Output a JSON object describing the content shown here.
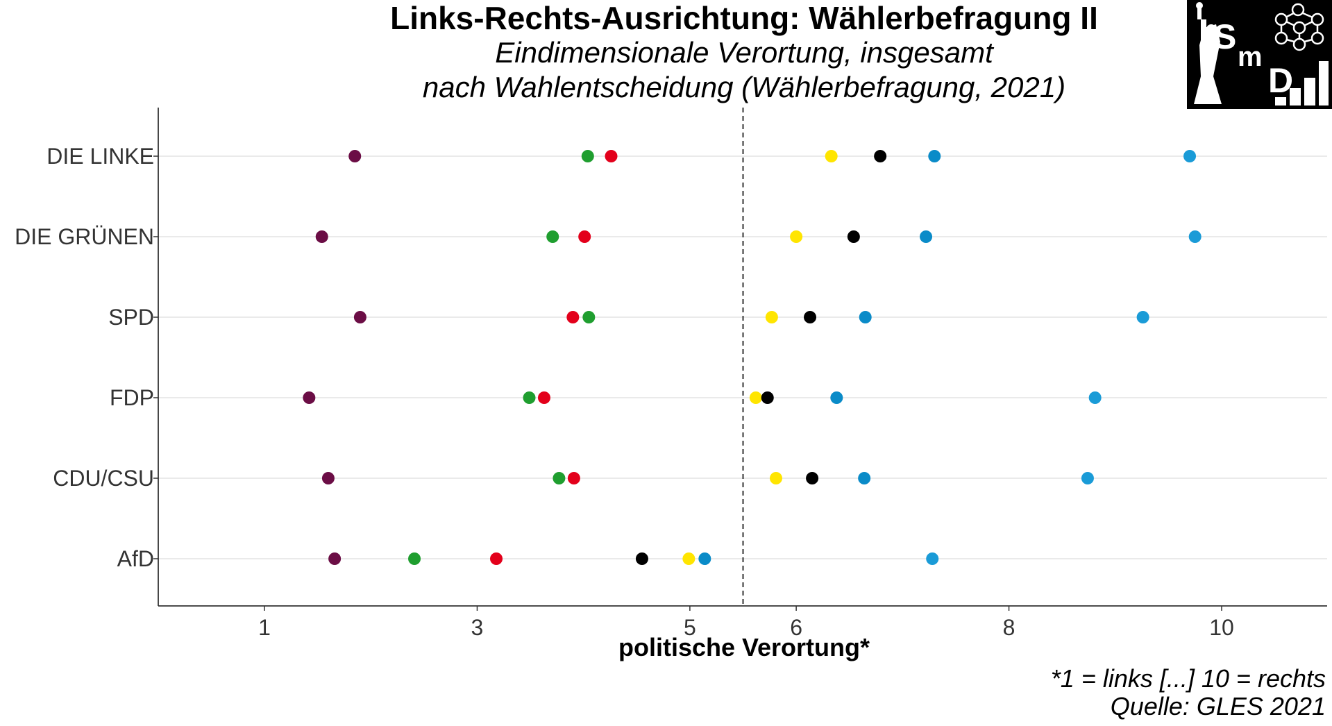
{
  "chart_data": {
    "type": "scatter",
    "title": "Links-Rechts-Ausrichtung: Wählerbefragung II",
    "subtitle_line1": "Eindimensionale Verortung, insgesamt",
    "subtitle_line2": "nach Wahlentscheidung (Wählerbefragung, 2021)",
    "xlabel": "politische Verortung*",
    "caption_line1": "*1 = links [...] 10 = rechts",
    "caption_line2": "Quelle: GLES 2021",
    "xlim": [
      0,
      11
    ],
    "x_ticks": [
      {
        "value": 1,
        "label": "1"
      },
      {
        "value": 3,
        "label": "3"
      },
      {
        "value": 5,
        "label": "5"
      },
      {
        "value": 6,
        "label": "6"
      },
      {
        "value": 8,
        "label": "8"
      },
      {
        "value": 10,
        "label": "10"
      }
    ],
    "reference_line": 5.5,
    "reference_line_style": "dashed",
    "grid": "horizontal major",
    "legend": "none",
    "categories": [
      "DIE LINKE",
      "DIE GRÜNEN",
      "SPD",
      "FDP",
      "CDU/CSU",
      "AfD"
    ],
    "series": [
      {
        "color": "#6b0d45",
        "values": [
          1.85,
          1.54,
          1.9,
          1.42,
          1.6,
          1.66
        ]
      },
      {
        "color": "#1f9e2f",
        "values": [
          4.04,
          3.71,
          4.05,
          3.49,
          3.77,
          2.41
        ]
      },
      {
        "color": "#e3001b",
        "values": [
          4.26,
          4.01,
          3.9,
          3.63,
          3.91,
          3.18
        ]
      },
      {
        "color": "#ffe500",
        "values": [
          6.33,
          6.0,
          5.77,
          5.62,
          5.81,
          4.99
        ]
      },
      {
        "color": "#000000",
        "values": [
          6.79,
          6.54,
          6.13,
          5.73,
          6.15,
          4.55
        ]
      },
      {
        "color": "#0a8bc8",
        "values": [
          7.3,
          7.22,
          6.65,
          6.38,
          6.64,
          5.14
        ]
      },
      {
        "color": "#1a9bd7",
        "values": [
          9.7,
          9.75,
          9.26,
          8.81,
          8.74,
          7.28
        ]
      }
    ]
  }
}
